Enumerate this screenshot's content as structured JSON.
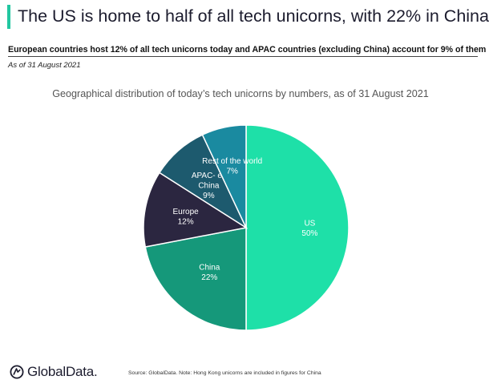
{
  "header": {
    "title": "The US is home to half of all tech unicorns, with 22% in China",
    "subtitle": "European countries host 12% of all tech unicorns today and APAC countries (excluding China) account for 9% of them",
    "date_note": "As of 31 August 2021"
  },
  "colors": {
    "accent": "#22c7a1"
  },
  "chart_data": {
    "type": "pie",
    "title": "Geographical distribution of today’s tech unicorns by numbers, as of 31 August 2021",
    "slices": [
      {
        "name": "US",
        "value": 50,
        "pct_label": "50%",
        "color": "#1ee0a8"
      },
      {
        "name": "China",
        "value": 22,
        "pct_label": "22%",
        "color": "#15987a"
      },
      {
        "name": "Europe",
        "value": 12,
        "pct_label": "12%",
        "color": "#2b2640"
      },
      {
        "name": "APAC- ex China",
        "value": 9,
        "pct_label": "9%",
        "color": "#1d5a6e"
      },
      {
        "name": "Rest of the world",
        "value": 7,
        "pct_label": "7%",
        "color": "#1a8aa0"
      }
    ]
  },
  "footer": {
    "logo_text": "GlobalData.",
    "logo_icon": "globaldata-logo-icon",
    "source": "Source: GlobalData. Note: Hong Kong unicorns are included in figures for China"
  }
}
